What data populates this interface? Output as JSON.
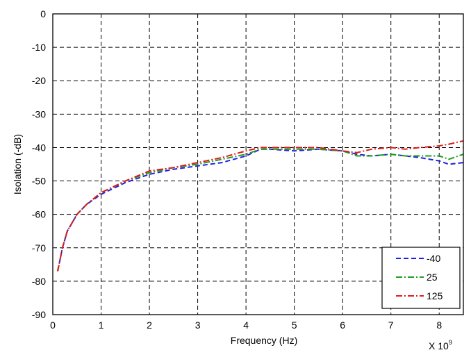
{
  "chart_data": {
    "type": "line",
    "xlabel": "Frequency (Hz)",
    "ylabel": "Isolation (-dB)",
    "x_multiplier_label": "X 10",
    "x_multiplier_exp": "9",
    "xlim": [
      0,
      8.5
    ],
    "ylim": [
      -90,
      0
    ],
    "xticks": [
      0,
      1,
      2,
      3,
      4,
      5,
      6,
      7,
      8
    ],
    "yticks": [
      0,
      -10,
      -20,
      -30,
      -40,
      -50,
      -60,
      -70,
      -80,
      -90
    ],
    "grid": true,
    "legend_position": "bottom-right",
    "series": [
      {
        "name": "-40",
        "color": "#1f1fe6",
        "dash": "dash",
        "x": [
          0.1,
          0.2,
          0.3,
          0.5,
          0.7,
          1.0,
          1.5,
          2.0,
          2.5,
          3.0,
          3.5,
          4.0,
          4.3,
          4.5,
          5.0,
          5.5,
          6.0,
          6.3,
          6.6,
          7.0,
          7.3,
          7.6,
          8.0,
          8.2,
          8.5
        ],
        "y": [
          -77,
          -70,
          -65,
          -60,
          -57,
          -54,
          -50.5,
          -48,
          -46.5,
          -45.5,
          -44.5,
          -42.5,
          -40.5,
          -40.5,
          -41,
          -40.5,
          -41,
          -42,
          -42.5,
          -42,
          -42.5,
          -43,
          -44,
          -45,
          -44.5
        ]
      },
      {
        "name": "25",
        "color": "#1e9e1e",
        "dash": "dashdot",
        "x": [
          0.1,
          0.2,
          0.3,
          0.5,
          0.7,
          1.0,
          1.5,
          2.0,
          2.5,
          3.0,
          3.5,
          4.0,
          4.3,
          4.5,
          5.0,
          5.5,
          6.0,
          6.3,
          6.6,
          7.0,
          7.3,
          7.6,
          8.0,
          8.2,
          8.5
        ],
        "y": [
          -77,
          -70,
          -65,
          -60,
          -57,
          -53.5,
          -50,
          -47.5,
          -46,
          -45,
          -43.5,
          -42,
          -40.5,
          -40.5,
          -40.5,
          -40.5,
          -41,
          -42.5,
          -42.5,
          -42,
          -42.5,
          -42.5,
          -42.5,
          -43.5,
          -42
        ]
      },
      {
        "name": "125",
        "color": "#e01b1b",
        "dash": "dashdot",
        "x": [
          0.1,
          0.2,
          0.3,
          0.5,
          0.7,
          1.0,
          1.5,
          2.0,
          2.5,
          3.0,
          3.5,
          4.0,
          4.3,
          4.5,
          5.0,
          5.5,
          6.0,
          6.3,
          6.6,
          7.0,
          7.3,
          7.6,
          8.0,
          8.2,
          8.5
        ],
        "y": [
          -77,
          -70,
          -65,
          -60,
          -57,
          -53.5,
          -50,
          -47,
          -46,
          -44.5,
          -43,
          -41,
          -40,
          -40,
          -40,
          -40,
          -41,
          -41.5,
          -40.5,
          -40,
          -40.5,
          -40,
          -39.5,
          -39,
          -38
        ]
      }
    ]
  }
}
